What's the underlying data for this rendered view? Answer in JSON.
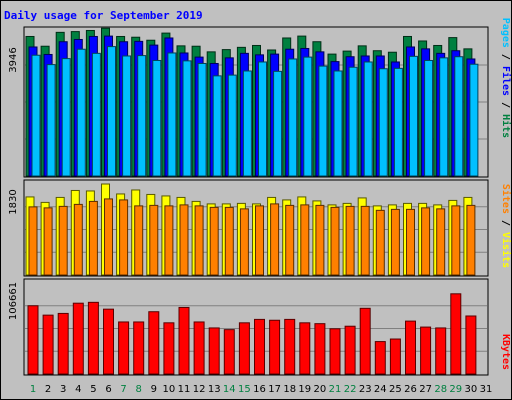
{
  "title": "Daily usage for September 2019",
  "colors": {
    "hits": "#008040",
    "files": "#0000ff",
    "pages": "#00c0ff",
    "visits": "#ffff00",
    "sites": "#ff8000",
    "kbytes": "#ff0000",
    "weekday_label": "#000000",
    "weekend_label": "#008040",
    "background": "#c0c0c0"
  },
  "chart_data": [
    {
      "type": "bar",
      "panel": "top",
      "ymax_label": "3946",
      "ylim": [
        0,
        3946
      ],
      "grid": true,
      "legend": {
        "labels": [
          "Pages",
          "Files",
          "Hits"
        ],
        "separator": "/"
      },
      "series": [
        {
          "name": "Hits",
          "color_key": "hits",
          "values": [
            3720,
            3460,
            3830,
            3850,
            3880,
            3940,
            3720,
            3700,
            3620,
            3810,
            3470,
            3460,
            3310,
            3370,
            3430,
            3480,
            3360,
            3680,
            3730,
            3580,
            3250,
            3330,
            3470,
            3340,
            3300,
            3720,
            3600,
            3480,
            3690,
            3390
          ]
        },
        {
          "name": "Files",
          "color_key": "files",
          "values": [
            3440,
            3240,
            3580,
            3640,
            3720,
            3730,
            3580,
            3590,
            3490,
            3680,
            3280,
            3170,
            3000,
            3150,
            3270,
            3230,
            3250,
            3380,
            3400,
            3310,
            3050,
            3180,
            3200,
            3200,
            3040,
            3440,
            3390,
            3270,
            3340,
            3120
          ]
        },
        {
          "name": "Pages",
          "color_key": "pages",
          "values": [
            3220,
            2970,
            3130,
            3380,
            3270,
            3450,
            3200,
            3210,
            3080,
            3280,
            3070,
            3000,
            2670,
            2690,
            2800,
            3040,
            2790,
            3120,
            3170,
            2930,
            2800,
            2900,
            3040,
            2860,
            2870,
            3190,
            3080,
            3150,
            3180,
            2980
          ]
        }
      ]
    },
    {
      "type": "bar",
      "panel": "middle",
      "ymax_label": "1830",
      "ylim": [
        0,
        1830
      ],
      "grid": true,
      "legend": {
        "labels": [
          "Sites",
          "Visits"
        ],
        "separator": "/"
      },
      "series": [
        {
          "name": "Visits",
          "color_key": "visits",
          "values": [
            1570,
            1460,
            1560,
            1700,
            1690,
            1830,
            1630,
            1710,
            1620,
            1590,
            1560,
            1480,
            1430,
            1430,
            1440,
            1430,
            1560,
            1510,
            1570,
            1490,
            1410,
            1440,
            1550,
            1390,
            1410,
            1440,
            1440,
            1410,
            1500,
            1560
          ]
        },
        {
          "name": "Sites",
          "color_key": "sites",
          "values": [
            1370,
            1350,
            1380,
            1420,
            1480,
            1530,
            1510,
            1390,
            1400,
            1390,
            1410,
            1390,
            1360,
            1360,
            1330,
            1390,
            1430,
            1400,
            1410,
            1400,
            1360,
            1380,
            1380,
            1300,
            1320,
            1320,
            1350,
            1330,
            1390,
            1400
          ]
        }
      ]
    },
    {
      "type": "bar",
      "panel": "bottom",
      "ymax_label": "106661",
      "ylim": [
        0,
        106661
      ],
      "grid": true,
      "legend": {
        "labels": [
          "KBytes"
        ],
        "separator": ""
      },
      "series": [
        {
          "name": "KBytes",
          "color_key": "kbytes",
          "values": [
            80000,
            69000,
            71000,
            83000,
            84000,
            76000,
            61000,
            61000,
            73000,
            60000,
            78000,
            61000,
            54000,
            52000,
            60000,
            64000,
            63000,
            64000,
            60000,
            59000,
            53000,
            56000,
            77000,
            38000,
            41000,
            62000,
            55000,
            54000,
            94000,
            68000
          ]
        }
      ]
    }
  ],
  "days": [
    "1",
    "2",
    "3",
    "4",
    "5",
    "6",
    "7",
    "8",
    "9",
    "10",
    "11",
    "12",
    "13",
    "14",
    "15",
    "16",
    "17",
    "18",
    "19",
    "20",
    "21",
    "22",
    "23",
    "24",
    "25",
    "26",
    "27",
    "28",
    "29",
    "30",
    "31"
  ],
  "weekend_days": [
    "1",
    "7",
    "8",
    "14",
    "15",
    "21",
    "22",
    "28",
    "29"
  ]
}
